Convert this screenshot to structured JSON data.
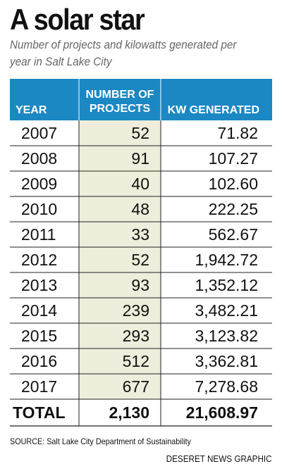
{
  "title": "A solar star",
  "subtitle": "Number of projects and kilowatts generated per year in Salt Lake City",
  "chart_data": {
    "type": "table",
    "columns": [
      "YEAR",
      "NUMBER OF PROJECTS",
      "KW GENERATED"
    ],
    "header_lines": {
      "year": [
        "YEAR"
      ],
      "projects": [
        "NUMBER OF",
        "PROJECTS"
      ],
      "kw": [
        "KW GENERATED"
      ]
    },
    "rows": [
      {
        "year": "2007",
        "projects": "52",
        "kw": "71.82"
      },
      {
        "year": "2008",
        "projects": "91",
        "kw": "107.27"
      },
      {
        "year": "2009",
        "projects": "40",
        "kw": "102.60"
      },
      {
        "year": "2010",
        "projects": "48",
        "kw": "222.25"
      },
      {
        "year": "2011",
        "projects": "33",
        "kw": "562.67"
      },
      {
        "year": "2012",
        "projects": "52",
        "kw": "1,942.72"
      },
      {
        "year": "2013",
        "projects": "93",
        "kw": "1,352.12"
      },
      {
        "year": "2014",
        "projects": "239",
        "kw": "3,482.21"
      },
      {
        "year": "2015",
        "projects": "293",
        "kw": "3,123.82"
      },
      {
        "year": "2016",
        "projects": "512",
        "kw": "3,362.81"
      },
      {
        "year": "2017",
        "projects": "677",
        "kw": "7,278.68"
      }
    ],
    "total": {
      "label": "TOTAL",
      "projects": "2,130",
      "kw": "21,608.97"
    }
  },
  "source": "SOURCE: Salt Lake City Department of Sustainability",
  "credit": "DESERET NEWS GRAPHIC",
  "colors": {
    "header_bg": "#1b88c4",
    "highlight_column": "#efeddb",
    "rule": "#222222"
  }
}
